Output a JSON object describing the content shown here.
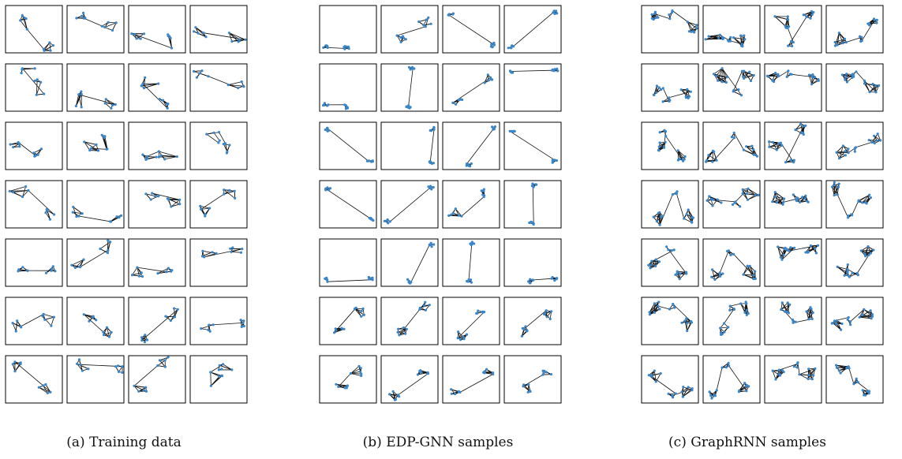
{
  "figure": {
    "panels": [
      {
        "caption": "(a) Training data",
        "node_color": "#3a86c8"
      },
      {
        "caption": "(b) EDP-GNN samples",
        "node_color": "#3a86c8"
      },
      {
        "caption": "(c) GraphRNN samples",
        "node_color": "#3a86c8"
      }
    ],
    "grid": {
      "rows": 7,
      "cols": 4
    },
    "edge_color": "#111111"
  }
}
